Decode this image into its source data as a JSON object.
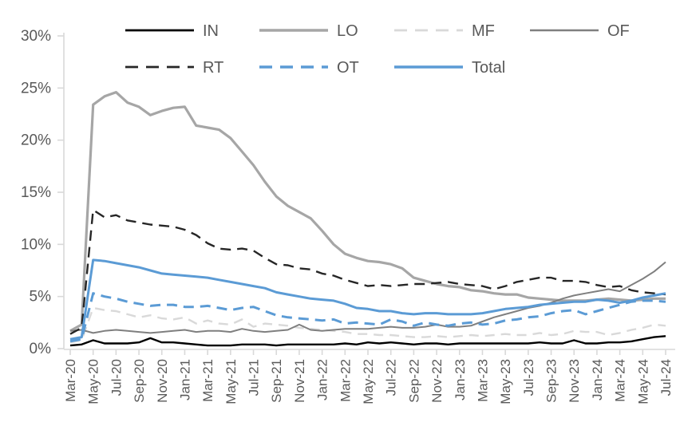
{
  "chart_data": {
    "type": "line",
    "title": "",
    "xlabel": "",
    "ylabel": "",
    "unit": "%",
    "ylim": [
      0,
      30
    ],
    "y_tick_step": 5,
    "y_tick_labels": [
      "0%",
      "5%",
      "10%",
      "15%",
      "20%",
      "25%",
      "30%"
    ],
    "grid": false,
    "legend_position": "top",
    "x_label_every": 2,
    "x": [
      "Mar-20",
      "Apr-20",
      "May-20",
      "Jun-20",
      "Jul-20",
      "Aug-20",
      "Sep-20",
      "Oct-20",
      "Nov-20",
      "Dec-20",
      "Jan-21",
      "Feb-21",
      "Mar-21",
      "Apr-21",
      "May-21",
      "Jun-21",
      "Jul-21",
      "Aug-21",
      "Sep-21",
      "Oct-21",
      "Nov-21",
      "Dec-21",
      "Jan-22",
      "Feb-22",
      "Mar-22",
      "Apr-22",
      "May-22",
      "Jun-22",
      "Jul-22",
      "Aug-22",
      "Sep-22",
      "Oct-22",
      "Nov-22",
      "Dec-22",
      "Jan-23",
      "Feb-23",
      "Mar-23",
      "Apr-23",
      "May-23",
      "Jun-23",
      "Jul-23",
      "Aug-23",
      "Sep-23",
      "Oct-23",
      "Nov-23",
      "Dec-23",
      "Jan-24",
      "Feb-24",
      "Mar-24",
      "Apr-24",
      "May-24",
      "Jun-24",
      "Jul-24"
    ],
    "x_shown_labels": [
      "Mar-20",
      "May-20",
      "Jul-20",
      "Sep-20",
      "Nov-20",
      "Jan-21",
      "Mar-21",
      "May-21",
      "Jul-21",
      "Sep-21",
      "Nov-21",
      "Jan-22",
      "Mar-22",
      "May-22",
      "Jul-22",
      "Sep-22",
      "Nov-22",
      "Jan-23",
      "Mar-23",
      "May-23",
      "Jul-23",
      "Sep-23",
      "Nov-23",
      "Jan-24",
      "Mar-24",
      "May-24",
      "Jul-24"
    ],
    "colors": {
      "accent_blue": "#5B9BD5",
      "black": "#000000",
      "dark_dash": "#262626",
      "mid_gray": "#A6A6A6",
      "light_gray": "#D9D9D9",
      "dark_gray": "#7F7F7F",
      "axis_line": "#D9D9D9",
      "label_text": "#595959"
    },
    "series": [
      {
        "name": "IN",
        "color": "#000000",
        "dash": "none",
        "width": 2.4,
        "values": [
          0.3,
          0.4,
          0.8,
          0.5,
          0.5,
          0.5,
          0.6,
          1.0,
          0.6,
          0.6,
          0.5,
          0.4,
          0.3,
          0.3,
          0.3,
          0.4,
          0.4,
          0.4,
          0.3,
          0.4,
          0.4,
          0.4,
          0.4,
          0.4,
          0.5,
          0.4,
          0.6,
          0.5,
          0.6,
          0.5,
          0.4,
          0.5,
          0.5,
          0.4,
          0.5,
          0.5,
          0.5,
          0.5,
          0.5,
          0.5,
          0.5,
          0.6,
          0.5,
          0.5,
          0.8,
          0.5,
          0.5,
          0.6,
          0.6,
          0.7,
          0.9,
          1.1,
          1.2
        ]
      },
      {
        "name": "LO",
        "color": "#A6A6A6",
        "dash": "none",
        "width": 3.2,
        "values": [
          1.7,
          2.3,
          23.4,
          24.2,
          24.6,
          23.6,
          23.2,
          22.4,
          22.8,
          23.1,
          23.2,
          21.4,
          21.2,
          21.0,
          20.2,
          18.9,
          17.6,
          16.0,
          14.6,
          13.7,
          13.1,
          12.5,
          11.3,
          10.0,
          9.1,
          8.7,
          8.4,
          8.3,
          8.1,
          7.7,
          6.8,
          6.5,
          6.2,
          6.0,
          5.9,
          5.6,
          5.5,
          5.3,
          5.2,
          5.2,
          4.9,
          4.8,
          4.7,
          4.6,
          4.6,
          4.6,
          4.7,
          4.8,
          4.7,
          4.6,
          4.7,
          4.8,
          4.8
        ]
      },
      {
        "name": "MF",
        "color": "#D9D9D9",
        "dash": "12,8",
        "width": 2.4,
        "values": [
          0.6,
          0.8,
          3.9,
          3.7,
          3.6,
          3.3,
          3.0,
          3.2,
          2.9,
          2.8,
          3.0,
          2.4,
          2.7,
          2.4,
          2.3,
          2.8,
          2.1,
          2.4,
          2.3,
          2.2,
          2.0,
          1.9,
          1.8,
          1.7,
          1.6,
          1.4,
          1.4,
          1.3,
          1.3,
          1.2,
          1.1,
          1.1,
          1.2,
          1.1,
          1.2,
          1.3,
          1.2,
          1.3,
          1.4,
          1.3,
          1.3,
          1.5,
          1.3,
          1.4,
          1.7,
          1.6,
          1.6,
          1.3,
          1.5,
          1.8,
          2.0,
          2.3,
          2.2
        ]
      },
      {
        "name": "OF",
        "color": "#7F7F7F",
        "dash": "none",
        "width": 2.0,
        "values": [
          1.7,
          1.8,
          1.5,
          1.7,
          1.8,
          1.7,
          1.6,
          1.5,
          1.6,
          1.7,
          1.8,
          1.6,
          1.7,
          1.7,
          1.6,
          1.9,
          1.7,
          1.6,
          1.7,
          1.8,
          2.3,
          1.8,
          1.7,
          1.8,
          1.9,
          1.9,
          1.9,
          2.0,
          2.1,
          2.0,
          2.0,
          2.1,
          2.3,
          2.1,
          2.1,
          2.2,
          2.6,
          3.0,
          3.3,
          3.6,
          3.9,
          4.1,
          4.4,
          4.8,
          5.1,
          5.3,
          5.5,
          5.7,
          5.5,
          6.1,
          6.7,
          7.4,
          8.3
        ]
      },
      {
        "name": "RT",
        "color": "#262626",
        "dash": "13,8",
        "width": 2.4,
        "values": [
          1.4,
          2.0,
          13.3,
          12.6,
          12.8,
          12.3,
          12.1,
          11.9,
          11.8,
          11.7,
          11.4,
          10.9,
          10.1,
          9.6,
          9.5,
          9.6,
          9.4,
          8.7,
          8.1,
          8.0,
          7.7,
          7.6,
          7.2,
          7.0,
          6.6,
          6.3,
          6.0,
          6.1,
          6.0,
          6.1,
          6.2,
          6.2,
          6.3,
          6.4,
          6.2,
          6.1,
          6.0,
          5.7,
          6.0,
          6.4,
          6.6,
          6.8,
          6.8,
          6.5,
          6.5,
          6.4,
          6.1,
          5.9,
          6.0,
          5.6,
          5.4,
          5.3,
          5.2
        ]
      },
      {
        "name": "OT",
        "color": "#5B9BD5",
        "dash": "13,8",
        "width": 3.0,
        "values": [
          0.7,
          0.9,
          5.3,
          5.0,
          4.8,
          4.5,
          4.3,
          4.1,
          4.2,
          4.2,
          4.0,
          4.0,
          4.1,
          3.9,
          3.7,
          3.9,
          4.0,
          3.6,
          3.2,
          3.0,
          2.9,
          2.8,
          2.7,
          2.8,
          2.4,
          2.5,
          2.4,
          2.3,
          2.8,
          2.6,
          2.2,
          2.5,
          2.3,
          2.2,
          2.4,
          2.5,
          2.3,
          2.4,
          2.7,
          2.8,
          3.0,
          3.1,
          3.4,
          3.6,
          3.7,
          3.3,
          3.6,
          3.9,
          4.2,
          4.5,
          4.6,
          4.6,
          4.5
        ]
      },
      {
        "name": "Total",
        "color": "#5B9BD5",
        "dash": "none",
        "width": 3.0,
        "values": [
          0.9,
          1.1,
          8.5,
          8.4,
          8.2,
          8.0,
          7.8,
          7.5,
          7.2,
          7.1,
          7.0,
          6.9,
          6.8,
          6.6,
          6.4,
          6.2,
          6.0,
          5.8,
          5.4,
          5.2,
          5.0,
          4.8,
          4.7,
          4.6,
          4.3,
          3.9,
          3.8,
          3.6,
          3.6,
          3.4,
          3.3,
          3.4,
          3.4,
          3.3,
          3.3,
          3.3,
          3.4,
          3.6,
          3.8,
          3.9,
          4.0,
          4.2,
          4.3,
          4.4,
          4.5,
          4.5,
          4.7,
          4.6,
          4.4,
          4.6,
          4.9,
          5.1,
          5.3
        ]
      }
    ],
    "legend_entries": [
      "IN",
      "LO",
      "MF",
      "OF",
      "RT",
      "OT",
      "Total"
    ]
  }
}
